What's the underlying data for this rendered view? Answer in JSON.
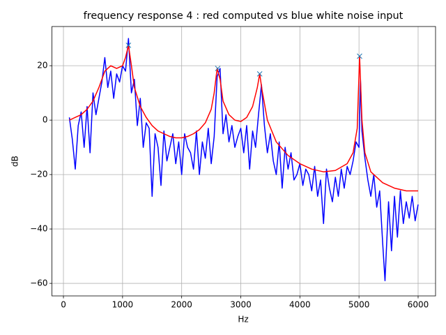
{
  "chart_data": {
    "type": "line",
    "title": "frequency response 4 : red computed vs blue white noise input",
    "xlabel": "Hz",
    "ylabel": "dB",
    "xlim": [
      -195,
      6295
    ],
    "ylim": [
      -64.6,
      34.4
    ],
    "xticks": [
      0,
      1000,
      2000,
      3000,
      4000,
      5000,
      6000
    ],
    "yticks": [
      {
        "value": -60,
        "label": "−60"
      },
      {
        "value": -40,
        "label": "−40"
      },
      {
        "value": -20,
        "label": "−20"
      },
      0,
      20
    ],
    "grid": true,
    "series": [
      {
        "color": "#0000ff",
        "style": "line",
        "x": [
          100,
          150,
          200,
          250,
          300,
          350,
          400,
          450,
          500,
          550,
          600,
          650,
          700,
          750,
          800,
          850,
          900,
          950,
          1000,
          1050,
          1100,
          1150,
          1200,
          1250,
          1300,
          1350,
          1400,
          1450,
          1500,
          1550,
          1600,
          1650,
          1700,
          1750,
          1800,
          1850,
          1900,
          1950,
          2000,
          2050,
          2100,
          2150,
          2200,
          2250,
          2300,
          2350,
          2400,
          2450,
          2500,
          2550,
          2600,
          2650,
          2700,
          2750,
          2800,
          2850,
          2900,
          2950,
          3000,
          3050,
          3100,
          3150,
          3200,
          3250,
          3300,
          3350,
          3400,
          3450,
          3500,
          3550,
          3600,
          3650,
          3700,
          3750,
          3800,
          3850,
          3900,
          3950,
          4000,
          4050,
          4100,
          4150,
          4200,
          4250,
          4300,
          4350,
          4400,
          4450,
          4500,
          4550,
          4600,
          4650,
          4700,
          4750,
          4800,
          4850,
          4900,
          4950,
          5000,
          5025,
          5050,
          5100,
          5150,
          5200,
          5250,
          5300,
          5350,
          5400,
          5440,
          5500,
          5550,
          5600,
          5650,
          5700,
          5750,
          5800,
          5850,
          5900,
          5950,
          6000
        ],
        "values": [
          1,
          -7,
          -18,
          -2,
          3,
          -10,
          5,
          -12,
          10,
          2,
          8,
          14,
          23,
          12,
          18,
          8,
          17,
          14,
          20,
          18,
          30,
          10,
          15,
          -2,
          8,
          -10,
          -1,
          -3,
          -28,
          -5,
          -10,
          -24,
          -4,
          -15,
          -10,
          -5,
          -16,
          -8,
          -20,
          -5,
          -10,
          -12,
          -18,
          -4,
          -20,
          -8,
          -14,
          -3,
          -16,
          -6,
          16,
          19,
          -5,
          2,
          -8,
          -2,
          -10,
          -6,
          -3,
          -12,
          -2,
          -18,
          -4,
          -10,
          2,
          13,
          -2,
          -12,
          -5,
          -15,
          -20,
          -8,
          -25,
          -10,
          -18,
          -12,
          -22,
          -20,
          -16,
          -24,
          -18,
          -20,
          -26,
          -17,
          -28,
          -22,
          -38,
          -18,
          -25,
          -30,
          -21,
          -28,
          -18,
          -25,
          -17,
          -20,
          -15,
          -8,
          -10,
          15,
          -4,
          -14,
          -22,
          -28,
          -20,
          -32,
          -26,
          -45,
          -59,
          -30,
          -48,
          -28,
          -43,
          -26,
          -38,
          -30,
          -36,
          -28,
          -37,
          -31
        ]
      },
      {
        "color": "#ff0000",
        "style": "line",
        "x": [
          100,
          200,
          300,
          400,
          500,
          600,
          700,
          800,
          900,
          1000,
          1050,
          1100,
          1150,
          1200,
          1300,
          1400,
          1500,
          1600,
          1700,
          1800,
          1900,
          2000,
          2100,
          2200,
          2300,
          2400,
          2500,
          2550,
          2600,
          2650,
          2700,
          2800,
          2900,
          3000,
          3100,
          3200,
          3280,
          3320,
          3360,
          3450,
          3600,
          3800,
          4000,
          4200,
          4400,
          4600,
          4800,
          4900,
          4970,
          5010,
          5050,
          5100,
          5200,
          5400,
          5600,
          5800,
          6000
        ],
        "values": [
          0,
          1,
          2,
          4,
          7,
          12,
          18,
          20,
          19,
          20,
          23,
          27.5,
          20,
          12,
          5,
          1,
          -2,
          -4,
          -5,
          -6,
          -6.5,
          -6.5,
          -6,
          -5,
          -3.5,
          -1,
          4,
          10,
          19,
          15,
          7,
          2,
          0,
          -0.5,
          1,
          5,
          12,
          17,
          11,
          0,
          -8,
          -13,
          -16,
          -18,
          -19,
          -18.5,
          -16,
          -12,
          -3,
          23.5,
          0,
          -12,
          -19,
          -23,
          -25,
          -26,
          -26
        ]
      },
      {
        "color": "#1f77b4",
        "style": "marker",
        "x": [
          1100,
          2610,
          3320,
          5010
        ],
        "values": [
          27.5,
          19,
          17,
          23.5
        ]
      }
    ]
  }
}
